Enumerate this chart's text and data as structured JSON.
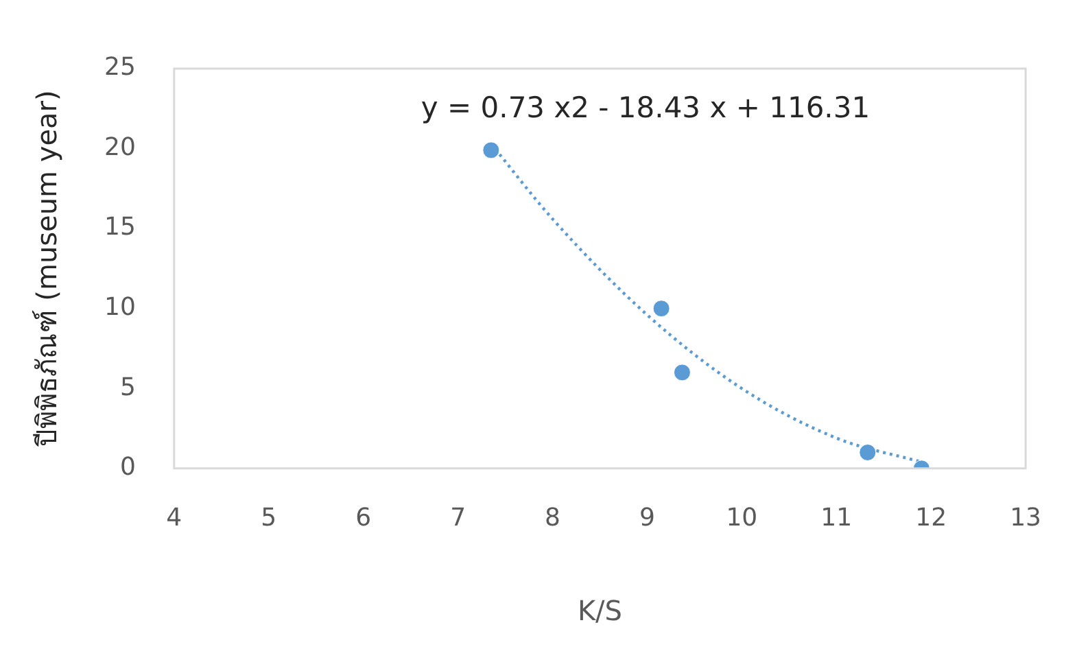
{
  "chart_data": {
    "type": "scatter",
    "xlabel": "K/S",
    "ylabel": "ปีพิพิธภัณฑ์ (museum year)",
    "annotations": [
      "y = 0.73 x2 - 18.43 x + 116.31"
    ],
    "xlim": [
      4,
      13
    ],
    "xticks": [
      4,
      5,
      6,
      7,
      8,
      9,
      10,
      11,
      12,
      13
    ],
    "ylim": [
      0,
      25
    ],
    "yticks": [
      0,
      5,
      10,
      15,
      20,
      25
    ],
    "grid": false,
    "legend": false,
    "marker": "circle",
    "series": [
      {
        "type": "scatter",
        "color": "#5b9bd5",
        "x": [
          7.35,
          9.15,
          9.37,
          11.33,
          11.9
        ],
        "values": [
          19.9,
          10.0,
          6.0,
          1.0,
          0.0
        ]
      },
      {
        "type": "line",
        "color": "#5b9bd5",
        "line_style": "dotted",
        "marker": "none",
        "x": [
          7.35,
          8,
          9,
          10,
          11,
          11.9
        ],
        "values": [
          20.3,
          15.6,
          9.6,
          5.0,
          1.9,
          0.4
        ]
      }
    ]
  }
}
